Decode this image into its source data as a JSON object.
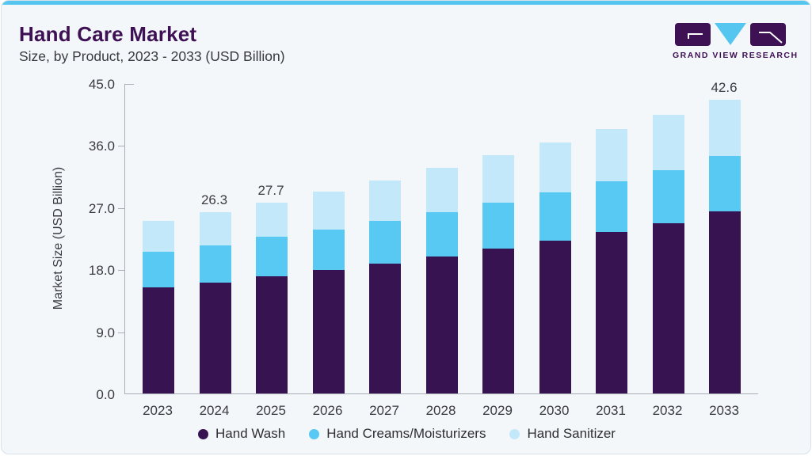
{
  "header": {
    "title": "Hand Care Market",
    "subtitle": "Size, by Product, 2023 - 2033 (USD Billion)"
  },
  "logo": {
    "text": "GRAND VIEW RESEARCH",
    "purple": "#3e1054",
    "blue": "#55c6f0"
  },
  "chart_data": {
    "type": "bar",
    "stacked": true,
    "title": "Hand Care Market Size, by Product, 2023 - 2033 (USD Billion)",
    "categories": [
      "2023",
      "2024",
      "2025",
      "2026",
      "2027",
      "2028",
      "2029",
      "2030",
      "2031",
      "2032",
      "2033"
    ],
    "series": [
      {
        "name": "Hand Wash",
        "color": "#371352",
        "values": [
          15.4,
          16.1,
          17.0,
          17.9,
          18.8,
          19.9,
          21.0,
          22.2,
          23.4,
          24.7,
          26.4
        ]
      },
      {
        "name": "Hand Creams/Moisturizers",
        "color": "#58c9f3",
        "values": [
          5.1,
          5.4,
          5.7,
          5.9,
          6.2,
          6.4,
          6.7,
          7.0,
          7.4,
          7.7,
          8.0
        ]
      },
      {
        "name": "Hand Sanitizer",
        "color": "#c3e8fa",
        "values": [
          4.5,
          4.8,
          5.0,
          5.5,
          5.9,
          6.4,
          6.8,
          7.2,
          7.6,
          8.0,
          8.2
        ]
      }
    ],
    "totals": [
      25.0,
      26.3,
      27.7,
      29.3,
      30.9,
      32.7,
      34.5,
      36.4,
      38.4,
      40.4,
      42.6
    ],
    "total_labels": [
      "",
      "26.3",
      "27.7",
      "",
      "",
      "",
      "",
      "",
      "",
      "",
      "42.6"
    ],
    "xlabel": "",
    "ylabel": "Market Size (USD Billion)",
    "ylim": [
      0,
      45
    ],
    "yticks": [
      0,
      9,
      18,
      27,
      36,
      45
    ],
    "ytick_labels": [
      "0.0",
      "9.0",
      "18.0",
      "27.0",
      "36.0",
      "45.0"
    ],
    "legend_position": "bottom",
    "grid": false,
    "accent_colors": {
      "card_background": "#f3f7fa",
      "top_strip": "#55c6f0",
      "title_purple": "#3e1054",
      "axis_gray": "#a9aeb6"
    }
  }
}
